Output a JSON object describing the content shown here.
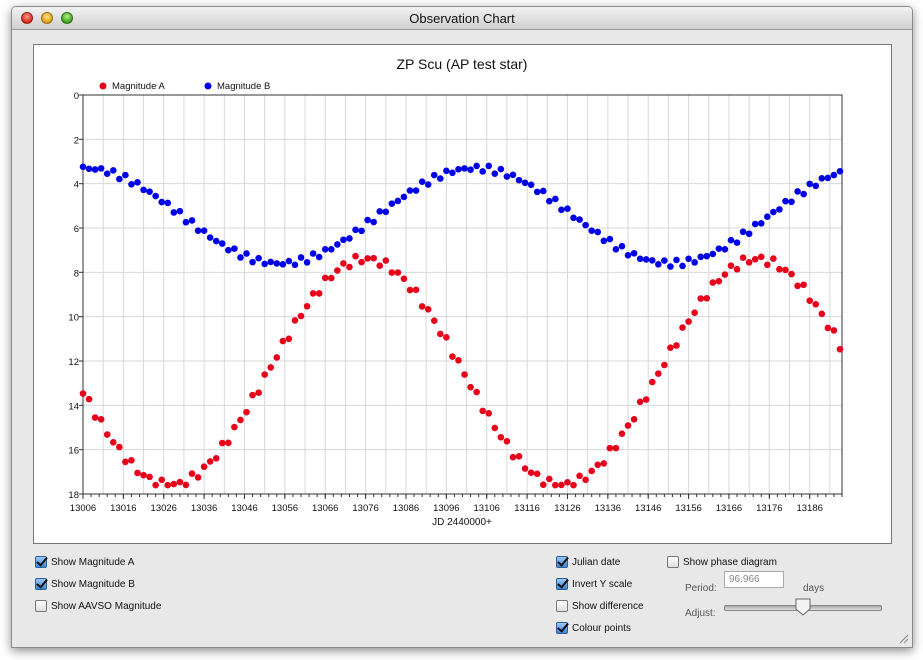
{
  "window": {
    "title": "Observation Chart"
  },
  "chart_data": {
    "type": "scatter",
    "title": "ZP Scu (AP test star)",
    "xlabel": "JD 2440000+",
    "ylabel": "",
    "xlim": [
      13006,
      13194
    ],
    "ylim": [
      0,
      18
    ],
    "y_inverted": true,
    "grid": true,
    "legend": "top-left",
    "x_ticks": [
      "13006",
      "13016",
      "13026",
      "13036",
      "13046",
      "13056",
      "13066",
      "13076",
      "13086",
      "13096",
      "13106",
      "13116",
      "13126",
      "13136",
      "13146",
      "13156",
      "13166",
      "13176",
      "13186"
    ],
    "y_ticks": [
      "0",
      "2",
      "4",
      "6",
      "8",
      "10",
      "12",
      "14",
      "16",
      "18"
    ],
    "series": [
      {
        "name": "Magnitude A",
        "color": "#e8001a",
        "x": [],
        "y": []
      },
      {
        "name": "Magnitude B",
        "color": "#0000e6",
        "x": [],
        "y": []
      }
    ]
  },
  "controls": {
    "show_mag_a": {
      "label": "Show Magnitude A",
      "checked": true
    },
    "show_mag_b": {
      "label": "Show Magnitude B",
      "checked": true
    },
    "show_aavso": {
      "label": "Show AAVSO Magnitude",
      "checked": false
    },
    "julian_date": {
      "label": "Julian date",
      "checked": true
    },
    "invert_y": {
      "label": "Invert Y scale",
      "checked": true
    },
    "show_difference": {
      "label": "Show difference",
      "checked": false
    },
    "colour_points": {
      "label": "Colour points",
      "checked": true
    },
    "show_phase": {
      "label": "Show phase diagram",
      "checked": false
    },
    "period_label": "Period:",
    "period_value": "96.966",
    "period_unit": "days",
    "adjust_label": "Adjust:"
  }
}
